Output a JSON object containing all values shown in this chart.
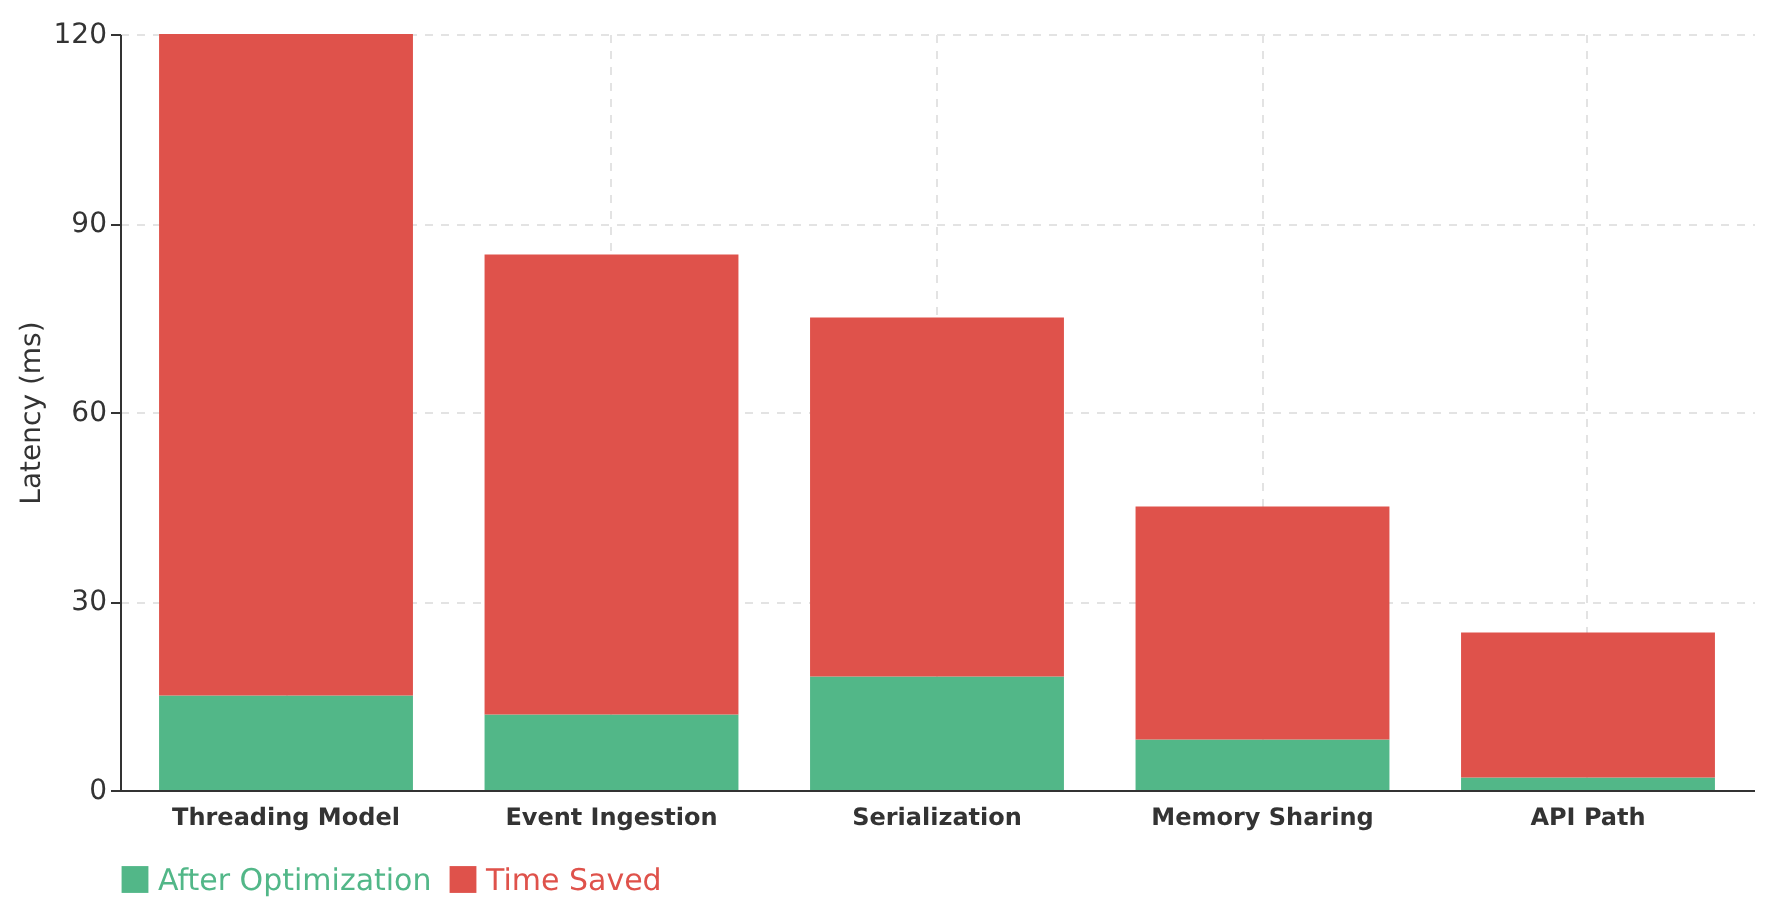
{
  "chart_data": {
    "type": "bar",
    "stacked": true,
    "ylabel": "Latency (ms)",
    "categories": [
      "Threading Model",
      "Event Ingestion",
      "Serialization",
      "Memory Sharing",
      "API Path"
    ],
    "series": [
      {
        "name": "After Optimization",
        "color": "#52b788",
        "values": [
          15,
          12,
          18,
          8,
          2
        ]
      },
      {
        "name": "Time Saved",
        "color": "#df524b",
        "values": [
          105,
          73,
          57,
          37,
          23
        ]
      }
    ],
    "ylim": [
      0,
      120
    ],
    "yticks": [
      0,
      30,
      60,
      90,
      120
    ],
    "grid": true,
    "legend": "bottom"
  }
}
